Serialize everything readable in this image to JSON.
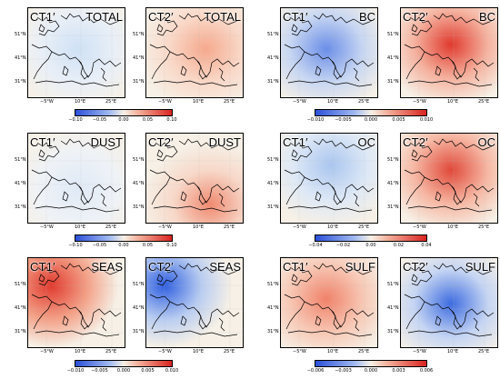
{
  "panels": [
    {
      "left": "CT1′",
      "right": "TOTAL"
    },
    {
      "left": "CT2′",
      "right": "TOTAL"
    },
    {
      "left": "CT1′",
      "right": "BC"
    },
    {
      "left": "CT2′",
      "right": "BC"
    },
    {
      "left": "CT1′",
      "right": "DUST"
    },
    {
      "left": "CT2′",
      "right": "DUST"
    },
    {
      "left": "CT1′",
      "right": "OC"
    },
    {
      "left": "CT2′",
      "right": "OC"
    },
    {
      "left": "CT1′",
      "right": "SEAS"
    },
    {
      "left": "CT2′",
      "right": "SEAS"
    },
    {
      "left": "CT1′",
      "right": "SULF"
    },
    {
      "left": "CT2′",
      "right": "SULF"
    }
  ],
  "lat_labels": [
    "51°N",
    "41°N",
    "31°N"
  ],
  "lon_labels": [
    "−5°W",
    "10°E",
    "25°E"
  ],
  "colorbars": [
    {
      "ticks": [
        "−0.10",
        "−0.05",
        "0.00",
        "0.05",
        "0.10"
      ]
    },
    {
      "ticks": [
        "−0.010",
        "−0.005",
        "0.000",
        "0.005",
        "0.010"
      ]
    },
    {
      "ticks": [
        "−0.10",
        "−0.05",
        "0.00",
        "0.05",
        "0.10"
      ]
    },
    {
      "ticks": [
        "−0.04",
        "−0.02",
        "0.00",
        "0.02",
        "0.04"
      ]
    },
    {
      "ticks": [
        "−0.010",
        "−0.005",
        "0.000",
        "0.005",
        "0.010"
      ]
    },
    {
      "ticks": [
        "−0.006",
        "−0.003",
        "0.000",
        "0.003",
        "0.006"
      ]
    }
  ],
  "colors": {
    "blue": "#2b4fd8",
    "red": "#d9231f",
    "neutral": "#f6f0e6"
  }
}
